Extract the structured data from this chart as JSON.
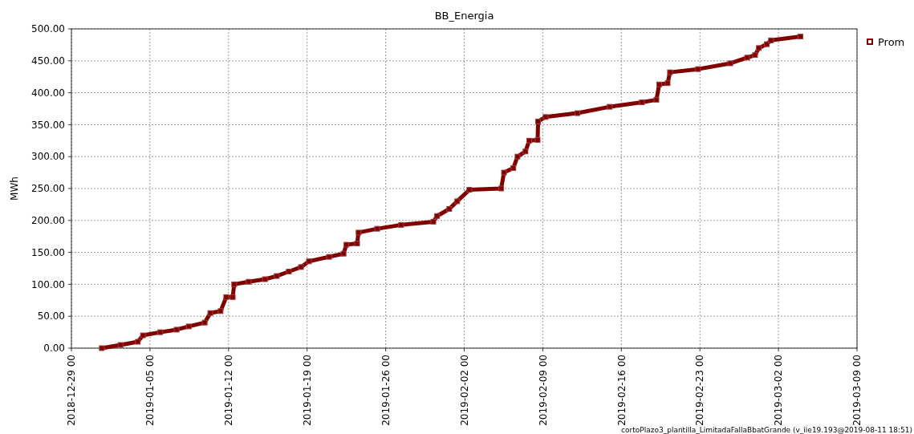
{
  "chart_data": {
    "type": "line",
    "title": "BB_Energia",
    "ylabel": "MWh",
    "x": [
      "2018-12-31T17:00",
      "2019-01-02T09:00",
      "2019-01-03T22:00",
      "2019-01-04T09:00",
      "2019-01-05T22:00",
      "2019-01-07T09:00",
      "2019-01-08T11:00",
      "2019-01-09T21:00",
      "2019-01-10T09:00",
      "2019-01-11T07:00",
      "2019-01-11T19:00",
      "2019-01-12T09:00",
      "2019-01-12T12:00",
      "2019-01-13T19:00",
      "2019-01-15T06:00",
      "2019-01-16T07:00",
      "2019-01-17T09:00",
      "2019-01-18T11:00",
      "2019-01-19T04:00",
      "2019-01-20T23:00",
      "2019-01-22T06:00",
      "2019-01-22T12:00",
      "2019-01-23T11:00",
      "2019-01-23T14:00",
      "2019-01-25T06:00",
      "2019-01-27T09:00",
      "2019-01-30T06:00",
      "2019-01-30T14:00",
      "2019-01-31T16:00",
      "2019-02-01T09:00",
      "2019-02-02T11:00",
      "2019-02-05T07:00",
      "2019-02-05T13:00",
      "2019-02-06T09:00",
      "2019-02-06T18:00",
      "2019-02-07T11:00",
      "2019-02-07T19:00",
      "2019-02-08T13:00",
      "2019-02-08T14:00",
      "2019-02-09T06:00",
      "2019-02-12T02:00",
      "2019-02-14T23:00",
      "2019-02-17T20:00",
      "2019-02-19T03:00",
      "2019-02-19T09:00",
      "2019-02-20T03:00",
      "2019-02-20T08:00",
      "2019-02-22T20:00",
      "2019-02-25T17:00",
      "2019-02-27T05:00",
      "2019-02-27T22:00",
      "2019-02-28T06:00",
      "2019-02-28T23:00",
      "2019-03-01T08:00",
      "2019-03-03T23:00"
    ],
    "series": [
      {
        "name": "Prom",
        "color": "#800000",
        "values": [
          0,
          5,
          10,
          20,
          25,
          29,
          34,
          40,
          55,
          58,
          80,
          80,
          100,
          104,
          108,
          113,
          120,
          127,
          136,
          143,
          148,
          162,
          164,
          181,
          187,
          193,
          198,
          207,
          218,
          230,
          248,
          250,
          275,
          282,
          300,
          308,
          325,
          326,
          355,
          362,
          368,
          378,
          385,
          389,
          413,
          415,
          432,
          437,
          446,
          455,
          459,
          470,
          476,
          482,
          488
        ]
      }
    ],
    "xlim": [
      "2018-12-29",
      "2019-03-09"
    ],
    "xticks": [
      {
        "value": "2018-12-29",
        "label": "2018-12-29 00"
      },
      {
        "value": "2019-01-05",
        "label": "2019-01-05 00"
      },
      {
        "value": "2019-01-12",
        "label": "2019-01-12 00"
      },
      {
        "value": "2019-01-19",
        "label": "2019-01-19 00"
      },
      {
        "value": "2019-01-26",
        "label": "2019-01-26 00"
      },
      {
        "value": "2019-02-02",
        "label": "2019-02-02 00"
      },
      {
        "value": "2019-02-09",
        "label": "2019-02-09 00"
      },
      {
        "value": "2019-02-16",
        "label": "2019-02-16 00"
      },
      {
        "value": "2019-02-23",
        "label": "2019-02-23 00"
      },
      {
        "value": "2019-03-02",
        "label": "2019-03-02 00"
      },
      {
        "value": "2019-03-09",
        "label": "2019-03-09 00"
      }
    ],
    "ylim": [
      0,
      500
    ],
    "yticks": [
      {
        "value": 0,
        "label": "0.00"
      },
      {
        "value": 50,
        "label": "50.00"
      },
      {
        "value": 100,
        "label": "100.00"
      },
      {
        "value": 150,
        "label": "150.00"
      },
      {
        "value": 200,
        "label": "200.00"
      },
      {
        "value": 250,
        "label": "250.00"
      },
      {
        "value": 300,
        "label": "300.00"
      },
      {
        "value": 350,
        "label": "350.00"
      },
      {
        "value": 400,
        "label": "400.00"
      },
      {
        "value": 450,
        "label": "450.00"
      },
      {
        "value": 500,
        "label": "500.00"
      }
    ],
    "grid": true,
    "legend": "right",
    "marker": "square",
    "line_style": "solid",
    "annotations": [
      "cortoPlazo3_plantilla_LimitadaFallaBbatGrande (v_iie19.193@2019-08-11 18:51)"
    ]
  }
}
